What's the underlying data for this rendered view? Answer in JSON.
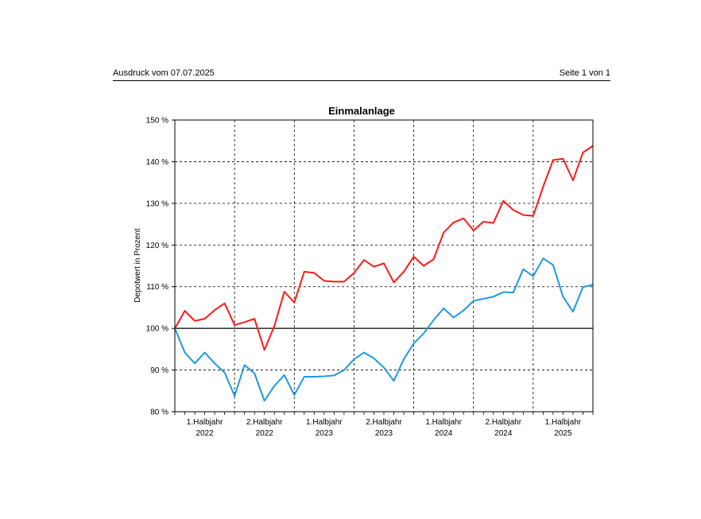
{
  "header": {
    "print_date": "Ausdruck vom 07.07.2025",
    "page": "Seite 1 von 1"
  },
  "chart_data": {
    "type": "line",
    "title": "Einmalanlage",
    "xlabel": "",
    "ylabel": "Depotwert in Prozent",
    "ylim": [
      80,
      150
    ],
    "yticks": [
      80,
      90,
      100,
      110,
      120,
      130,
      140,
      150
    ],
    "ytick_suffix": " %",
    "x_count": 43,
    "period_labels": [
      [
        "1.Halbjahr",
        "2022"
      ],
      [
        "2.Halbjahr",
        "2022"
      ],
      [
        "1.Halbjahr",
        "2023"
      ],
      [
        "2.Halbjahr",
        "2023"
      ],
      [
        "1.Halbjahr",
        "2024"
      ],
      [
        "2.Halbjahr",
        "2024"
      ],
      [
        "1.Halbjahr",
        "2025"
      ]
    ],
    "grid": true,
    "series": [
      {
        "color": "#ff1a1a",
        "values": [
          100,
          104.2,
          101.8,
          102.3,
          104.4,
          106.0,
          100.8,
          101.5,
          102.3,
          94.8,
          100.6,
          108.8,
          106.2,
          113.6,
          113.3,
          111.4,
          111.2,
          111.2,
          113.3,
          116.4,
          114.8,
          115.6,
          111.0,
          113.6,
          117.2,
          115.0,
          116.6,
          123.0,
          125.4,
          126.4,
          123.5,
          125.6,
          125.3,
          130.6,
          128.4,
          127.2,
          127.0,
          134.0,
          140.4,
          140.7,
          135.5,
          142.2,
          143.8
        ]
      },
      {
        "color": "#1e9ae0",
        "values": [
          100,
          94.2,
          91.6,
          94.2,
          91.6,
          89.4,
          83.8,
          91.2,
          89.2,
          82.6,
          86.2,
          88.8,
          84.0,
          88.4,
          88.4,
          88.5,
          88.7,
          90.0,
          92.6,
          94.2,
          92.8,
          90.6,
          87.4,
          92.6,
          96.4,
          98.8,
          102.0,
          104.8,
          102.6,
          104.3,
          106.6,
          107.1,
          107.6,
          108.7,
          108.6,
          114.2,
          112.5,
          116.8,
          115.2,
          107.6,
          104.0,
          109.9,
          110.5
        ]
      }
    ]
  }
}
